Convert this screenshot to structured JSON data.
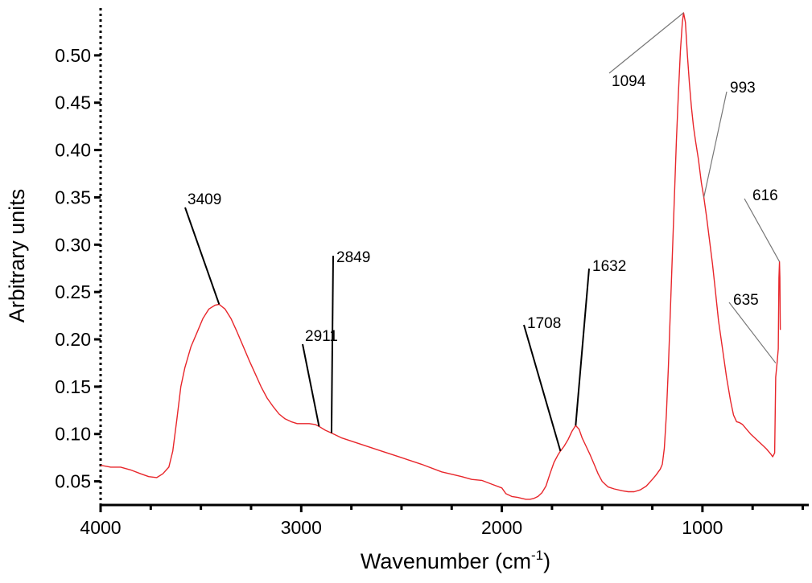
{
  "chart_data": {
    "type": "line",
    "xlabel": "Wavenumber (cm",
    "xlabel_sup": "-1",
    "xlabel_close": ")",
    "ylabel": "Arbitrary units",
    "xlim": [
      4000,
      470
    ],
    "ylim": [
      0.025,
      0.55
    ],
    "x_reversed": true,
    "grid": false,
    "x_ticks": [
      {
        "value": 4000,
        "label": "4000"
      },
      {
        "value": 3000,
        "label": "3000"
      },
      {
        "value": 2000,
        "label": "2000"
      },
      {
        "value": 1000,
        "label": "1000"
      }
    ],
    "y_ticks": [
      {
        "value": 0.05,
        "label": "0.05"
      },
      {
        "value": 0.1,
        "label": "0.10"
      },
      {
        "value": 0.15,
        "label": "0.15"
      },
      {
        "value": 0.2,
        "label": "0.20"
      },
      {
        "value": 0.25,
        "label": "0.25"
      },
      {
        "value": 0.3,
        "label": "0.30"
      },
      {
        "value": 0.35,
        "label": "0.35"
      },
      {
        "value": 0.4,
        "label": "0.40"
      },
      {
        "value": 0.45,
        "label": "0.45"
      },
      {
        "value": 0.5,
        "label": "0.50"
      }
    ],
    "series": [
      {
        "color": "#e8262b",
        "x": [
          4000,
          3950,
          3900,
          3850,
          3800,
          3760,
          3720,
          3690,
          3660,
          3640,
          3620,
          3600,
          3580,
          3550,
          3520,
          3490,
          3460,
          3430,
          3409,
          3380,
          3350,
          3320,
          3290,
          3260,
          3230,
          3200,
          3170,
          3140,
          3110,
          3080,
          3050,
          3020,
          2990,
          2960,
          2930,
          2911,
          2880,
          2849,
          2800,
          2700,
          2600,
          2500,
          2400,
          2300,
          2200,
          2150,
          2100,
          2050,
          2000,
          1980,
          1950,
          1920,
          1900,
          1880,
          1860,
          1840,
          1820,
          1800,
          1780,
          1760,
          1740,
          1720,
          1708,
          1690,
          1670,
          1650,
          1632,
          1615,
          1600,
          1580,
          1560,
          1540,
          1520,
          1500,
          1470,
          1440,
          1400,
          1370,
          1340,
          1310,
          1280,
          1250,
          1230,
          1210,
          1200,
          1190,
          1180,
          1170,
          1160,
          1150,
          1140,
          1130,
          1120,
          1110,
          1100,
          1094,
          1085,
          1075,
          1065,
          1055,
          1045,
          1035,
          1020,
          1005,
          993,
          980,
          965,
          950,
          935,
          920,
          900,
          880,
          860,
          845,
          830,
          815,
          800,
          780,
          760,
          740,
          720,
          700,
          680,
          660,
          650,
          640,
          635,
          628,
          622,
          619,
          616,
          614,
          612
        ],
        "y": [
          0.067,
          0.065,
          0.065,
          0.062,
          0.058,
          0.055,
          0.054,
          0.058,
          0.065,
          0.082,
          0.115,
          0.15,
          0.17,
          0.192,
          0.207,
          0.222,
          0.232,
          0.236,
          0.237,
          0.232,
          0.222,
          0.208,
          0.193,
          0.178,
          0.164,
          0.15,
          0.138,
          0.129,
          0.121,
          0.116,
          0.113,
          0.111,
          0.111,
          0.111,
          0.11,
          0.108,
          0.104,
          0.101,
          0.096,
          0.089,
          0.082,
          0.075,
          0.068,
          0.06,
          0.055,
          0.052,
          0.051,
          0.047,
          0.043,
          0.037,
          0.034,
          0.033,
          0.032,
          0.031,
          0.031,
          0.032,
          0.034,
          0.038,
          0.045,
          0.058,
          0.07,
          0.078,
          0.082,
          0.087,
          0.094,
          0.103,
          0.109,
          0.105,
          0.096,
          0.087,
          0.078,
          0.068,
          0.058,
          0.05,
          0.044,
          0.042,
          0.04,
          0.039,
          0.039,
          0.041,
          0.045,
          0.052,
          0.057,
          0.063,
          0.068,
          0.085,
          0.12,
          0.17,
          0.23,
          0.29,
          0.35,
          0.41,
          0.46,
          0.505,
          0.535,
          0.545,
          0.535,
          0.5,
          0.47,
          0.445,
          0.425,
          0.41,
          0.39,
          0.365,
          0.35,
          0.33,
          0.305,
          0.28,
          0.25,
          0.22,
          0.19,
          0.16,
          0.135,
          0.12,
          0.113,
          0.112,
          0.11,
          0.105,
          0.1,
          0.096,
          0.092,
          0.088,
          0.084,
          0.079,
          0.076,
          0.08,
          0.16,
          0.175,
          0.19,
          0.265,
          0.282,
          0.265,
          0.21
        ]
      }
    ],
    "annotations": [
      {
        "label": "3409",
        "x": 3409,
        "y": 0.237,
        "dark": true
      },
      {
        "label": "2911",
        "x": 2911,
        "y": 0.108,
        "dark": true
      },
      {
        "label": "2849",
        "x": 2849,
        "y": 0.101,
        "dark": true
      },
      {
        "label": "1708",
        "x": 1708,
        "y": 0.082,
        "dark": true
      },
      {
        "label": "1632",
        "x": 1632,
        "y": 0.109,
        "dark": true
      },
      {
        "label": "1094",
        "x": 1094,
        "y": 0.545,
        "dark": false
      },
      {
        "label": "993",
        "x": 993,
        "y": 0.35,
        "dark": false
      },
      {
        "label": "616",
        "x": 616,
        "y": 0.282,
        "dark": false
      },
      {
        "label": "635",
        "x": 635,
        "y": 0.175,
        "dark": false
      }
    ]
  }
}
